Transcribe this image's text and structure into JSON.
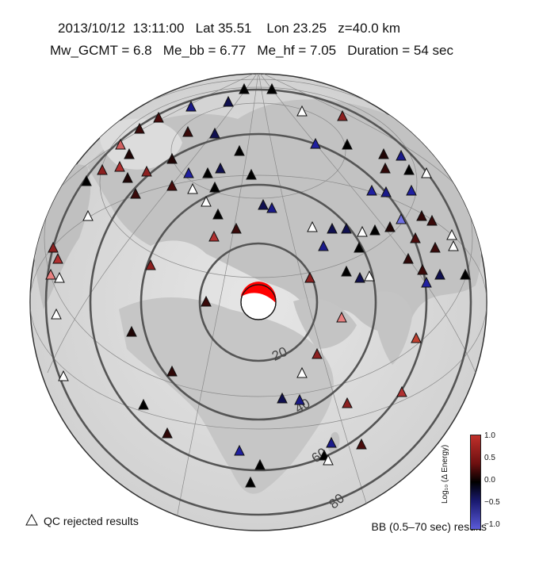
{
  "header": {
    "line1": "2013/10/12  13:11:00   Lat 35.51    Lon 23.25   z=40.0 km",
    "line2": "Mw_GCMT = 6.8   Me_bb = 6.77   Me_hf = 7.05   Duration = 54 sec"
  },
  "map": {
    "distance_rings_deg": [
      20,
      40,
      60,
      80
    ],
    "ring_labels": [
      "20",
      "40",
      "60",
      "80"
    ],
    "mechanism_colors": {
      "compression": "#ff0000",
      "dilatation": "#ffffff"
    },
    "land_color": "#cfcfcf",
    "ocean_color": "#f2f2f2"
  },
  "legend": {
    "qc_rejected": "QC rejected results",
    "bb_results": "BB (0.5–70 sec) results"
  },
  "colorbar": {
    "title": "Log₁₀ (Δ Energy)",
    "ticks": [
      "1.0",
      "0.5",
      "0.0",
      "−0.5",
      "−1.0"
    ],
    "range": [
      -1.0,
      1.0
    ],
    "colors": {
      "positive": "#c0302b",
      "zero": "#000000",
      "negative": "#5a5ad8"
    }
  }
}
